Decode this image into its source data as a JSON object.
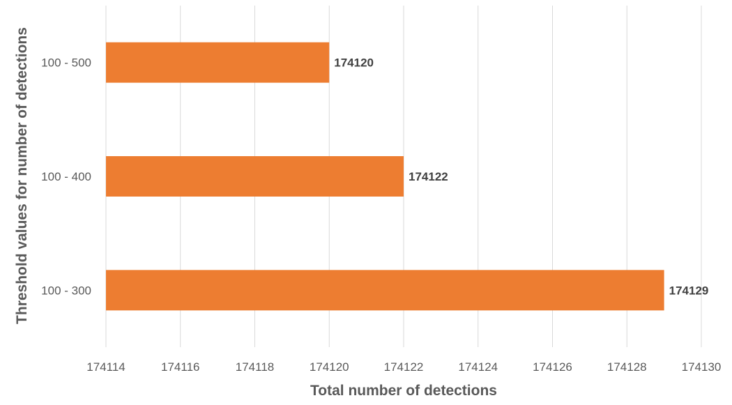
{
  "chart_data": {
    "type": "bar",
    "orientation": "horizontal",
    "title": "",
    "xlabel": "Total number of detections",
    "ylabel": "Threshold values for number of detections",
    "categories": [
      "100 - 500",
      "100 - 400",
      "100 - 300"
    ],
    "values": [
      174120,
      174122,
      174129
    ],
    "data_labels": [
      "174120",
      "174122",
      "174129"
    ],
    "xlim": [
      174114,
      174130
    ],
    "x_ticks": [
      174114,
      174116,
      174118,
      174120,
      174122,
      174124,
      174126,
      174128,
      174130
    ],
    "x_tick_labels": [
      "174114",
      "174116",
      "174118",
      "174120",
      "174122",
      "174124",
      "174126",
      "174128",
      "174130"
    ],
    "grid": "vertical",
    "legend": "none",
    "bar_color": "#ED7D31"
  }
}
